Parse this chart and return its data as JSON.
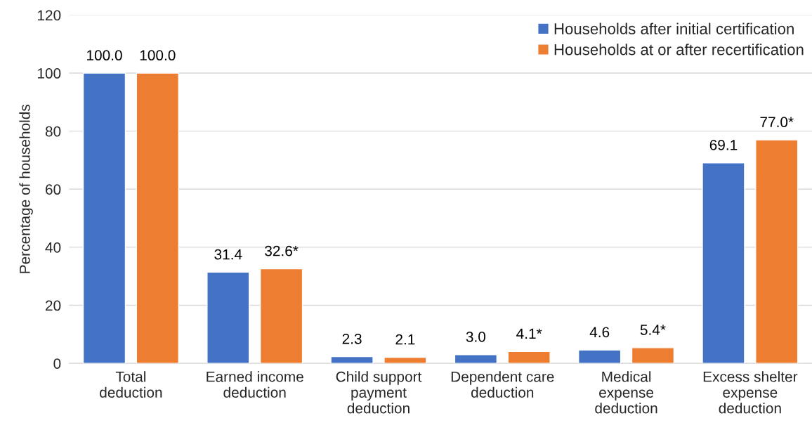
{
  "chart_data": {
    "type": "bar",
    "ylabel": "Percentage of households",
    "categories": [
      "Total\ndeduction",
      "Earned income\ndeduction",
      "Child support\npayment\ndeduction",
      "Dependent care\ndeduction",
      "Medical\nexpense\ndeduction",
      "Excess shelter\nexpense\ndeduction"
    ],
    "series": [
      {
        "name": "Households after initial certification",
        "color": "#4472c4",
        "values": [
          100.0,
          31.4,
          2.3,
          3.0,
          4.6,
          69.1
        ],
        "value_labels": [
          "100.0",
          "31.4",
          "2.3",
          "3.0",
          "4.6",
          "69.1"
        ]
      },
      {
        "name": "Households at or after recertification",
        "color": "#ed7d31",
        "values": [
          100.0,
          32.6,
          2.1,
          4.1,
          5.4,
          77.0
        ],
        "value_labels": [
          "100.0",
          "32.6*",
          "2.1",
          "4.1*",
          "5.4*",
          "77.0*"
        ]
      }
    ],
    "ylim": [
      0,
      120
    ],
    "yticks": [
      0,
      20,
      40,
      60,
      80,
      100,
      120
    ],
    "grid": "y",
    "legend": "top right"
  }
}
